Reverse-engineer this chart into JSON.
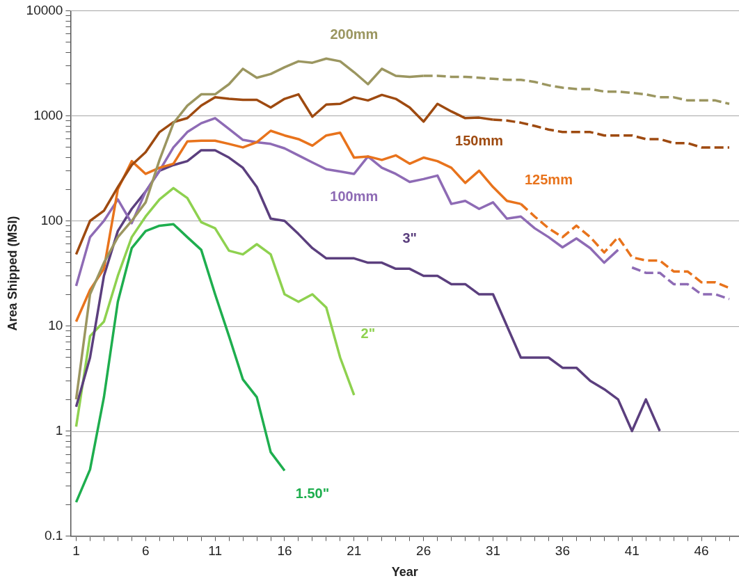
{
  "chart_data": {
    "type": "line",
    "xlabel": "Year",
    "ylabel": "Area Shipped (MSI)",
    "log": "y",
    "grid": "y",
    "legend": false,
    "marker": "none",
    "line_style": "solid",
    "xlim": [
      0.6,
      48.7
    ],
    "xticks": [
      1,
      {
        "value": 2,
        "label": null
      },
      {
        "value": 3,
        "label": null
      },
      {
        "value": 4,
        "label": null
      },
      {
        "value": 5,
        "label": null
      },
      6,
      {
        "value": 7,
        "label": null
      },
      {
        "value": 8,
        "label": null
      },
      {
        "value": 9,
        "label": null
      },
      {
        "value": 10,
        "label": null
      },
      11,
      {
        "value": 12,
        "label": null
      },
      {
        "value": 13,
        "label": null
      },
      {
        "value": 14,
        "label": null
      },
      {
        "value": 15,
        "label": null
      },
      16,
      {
        "value": 17,
        "label": null
      },
      {
        "value": 18,
        "label": null
      },
      {
        "value": 19,
        "label": null
      },
      {
        "value": 20,
        "label": null
      },
      21,
      {
        "value": 22,
        "label": null
      },
      {
        "value": 23,
        "label": null
      },
      {
        "value": 24,
        "label": null
      },
      {
        "value": 25,
        "label": null
      },
      26,
      {
        "value": 27,
        "label": null
      },
      {
        "value": 28,
        "label": null
      },
      {
        "value": 29,
        "label": null
      },
      {
        "value": 30,
        "label": null
      },
      31,
      {
        "value": 32,
        "label": null
      },
      {
        "value": 33,
        "label": null
      },
      {
        "value": 34,
        "label": null
      },
      {
        "value": 35,
        "label": null
      },
      36,
      {
        "value": 37,
        "label": null
      },
      {
        "value": 38,
        "label": null
      },
      {
        "value": 39,
        "label": null
      },
      {
        "value": 40,
        "label": null
      },
      41,
      {
        "value": 42,
        "label": null
      },
      {
        "value": 43,
        "label": null
      },
      {
        "value": 44,
        "label": null
      },
      {
        "value": 45,
        "label": null
      },
      46,
      {
        "value": 47,
        "label": null
      },
      {
        "value": 48,
        "label": null
      }
    ],
    "ylim": [
      0.1,
      10000
    ],
    "yticks": [
      0.1,
      {
        "value": 0.2,
        "label": null
      },
      {
        "value": 0.3,
        "label": null
      },
      {
        "value": 0.4,
        "label": null
      },
      {
        "value": 0.5,
        "label": null
      },
      {
        "value": 0.6,
        "label": null
      },
      {
        "value": 0.7,
        "label": null
      },
      {
        "value": 0.8,
        "label": null
      },
      {
        "value": 0.9,
        "label": null
      },
      1,
      {
        "value": 2,
        "label": null
      },
      {
        "value": 3,
        "label": null
      },
      {
        "value": 4,
        "label": null
      },
      {
        "value": 5,
        "label": null
      },
      {
        "value": 6,
        "label": null
      },
      {
        "value": 7,
        "label": null
      },
      {
        "value": 8,
        "label": null
      },
      {
        "value": 9,
        "label": null
      },
      10,
      {
        "value": 20,
        "label": null
      },
      {
        "value": 30,
        "label": null
      },
      {
        "value": 40,
        "label": null
      },
      {
        "value": 50,
        "label": null
      },
      {
        "value": 60,
        "label": null
      },
      {
        "value": 70,
        "label": null
      },
      {
        "value": 80,
        "label": null
      },
      {
        "value": 90,
        "label": null
      },
      100,
      {
        "value": 200,
        "label": null
      },
      {
        "value": 300,
        "label": null
      },
      {
        "value": 400,
        "label": null
      },
      {
        "value": 500,
        "label": null
      },
      {
        "value": 600,
        "label": null
      },
      {
        "value": 700,
        "label": null
      },
      {
        "value": 800,
        "label": null
      },
      {
        "value": 900,
        "label": null
      },
      1000,
      {
        "value": 2000,
        "label": null
      },
      {
        "value": 3000,
        "label": null
      },
      {
        "value": 4000,
        "label": null
      },
      {
        "value": 5000,
        "label": null
      },
      {
        "value": 6000,
        "label": null
      },
      {
        "value": 7000,
        "label": null
      },
      {
        "value": 8000,
        "label": null
      },
      {
        "value": 9000,
        "label": null
      },
      10000
    ],
    "series": [
      {
        "name": "200mm",
        "color": "#9b9660",
        "x": [
          1,
          2,
          3,
          4,
          5,
          6,
          7,
          8,
          9,
          10,
          11,
          12,
          13,
          14,
          15,
          16,
          17,
          18,
          19,
          20,
          21,
          22,
          23,
          24,
          25,
          26
        ],
        "values": [
          2,
          20,
          40,
          70,
          100,
          150,
          380,
          850,
          1250,
          1600,
          1600,
          2000,
          2800,
          2300,
          2500,
          2900,
          3300,
          3200,
          3500,
          3300,
          2600,
          2000,
          2800,
          2400,
          2350,
          2400
        ]
      },
      {
        "color": "#9b9660",
        "line_style": "dashed",
        "x": [
          26,
          27,
          28,
          29,
          30,
          31,
          32,
          33,
          34,
          35,
          36,
          37,
          38,
          39,
          40,
          41,
          42,
          43,
          44,
          45,
          46,
          47,
          48
        ],
        "values": [
          2400,
          2400,
          2350,
          2350,
          2300,
          2250,
          2200,
          2200,
          2100,
          1950,
          1850,
          1800,
          1800,
          1700,
          1700,
          1650,
          1600,
          1500,
          1500,
          1400,
          1400,
          1400,
          1300
        ]
      },
      {
        "name": "150mm",
        "color": "#9e4a10",
        "x": [
          1,
          2,
          3,
          4,
          5,
          6,
          7,
          8,
          9,
          10,
          11,
          12,
          13,
          14,
          15,
          16,
          17,
          18,
          19,
          20,
          21,
          22,
          23,
          24,
          25,
          26,
          27,
          28,
          29,
          30,
          31
        ],
        "values": [
          48,
          100,
          125,
          210,
          340,
          450,
          700,
          870,
          950,
          1250,
          1500,
          1450,
          1420,
          1420,
          1200,
          1450,
          1600,
          980,
          1280,
          1300,
          1500,
          1400,
          1580,
          1450,
          1200,
          880,
          1300,
          1100,
          950,
          960,
          920
        ]
      },
      {
        "color": "#9e4a10",
        "line_style": "dashed",
        "x": [
          31,
          32,
          33,
          34,
          35,
          36,
          37,
          38,
          39,
          40,
          41,
          42,
          43,
          44,
          45,
          46,
          47,
          48
        ],
        "values": [
          920,
          900,
          860,
          800,
          740,
          700,
          700,
          700,
          650,
          650,
          650,
          600,
          600,
          550,
          550,
          500,
          500,
          500
        ]
      },
      {
        "name": "125mm",
        "color": "#e8731c",
        "x": [
          1,
          2,
          3,
          4,
          5,
          6,
          7,
          8,
          9,
          10,
          11,
          12,
          13,
          14,
          15,
          16,
          17,
          18,
          19,
          20,
          21,
          22,
          23,
          24,
          25,
          26,
          27,
          28,
          29,
          30,
          31,
          32,
          33
        ],
        "values": [
          11,
          22,
          35,
          200,
          370,
          280,
          320,
          350,
          570,
          580,
          580,
          540,
          500,
          560,
          720,
          650,
          600,
          520,
          650,
          690,
          400,
          410,
          380,
          420,
          350,
          400,
          370,
          320,
          230,
          300,
          210,
          155,
          145
        ]
      },
      {
        "color": "#e8731c",
        "line_style": "dashed",
        "x": [
          33,
          34,
          35,
          36,
          37,
          38,
          39,
          40,
          41,
          42,
          43,
          44,
          45,
          46,
          47,
          48
        ],
        "values": [
          145,
          110,
          85,
          70,
          90,
          70,
          50,
          70,
          45,
          42,
          42,
          33,
          33,
          26,
          26,
          23
        ]
      },
      {
        "name": "100mm",
        "color": "#8e6bb5",
        "x": [
          1,
          2,
          3,
          4,
          5,
          6,
          7,
          8,
          9,
          10,
          11,
          12,
          13,
          14,
          15,
          16,
          17,
          18,
          19,
          20,
          21,
          22,
          23,
          24,
          25,
          26,
          27,
          28,
          29,
          30,
          31,
          32,
          33,
          34,
          35,
          36,
          37,
          38,
          39,
          40
        ],
        "values": [
          24,
          70,
          100,
          160,
          95,
          190,
          300,
          500,
          700,
          850,
          950,
          750,
          590,
          560,
          540,
          490,
          420,
          360,
          310,
          295,
          280,
          410,
          320,
          280,
          235,
          250,
          270,
          145,
          155,
          130,
          150,
          105,
          110,
          85,
          70,
          56,
          68,
          55,
          40,
          53
        ]
      },
      {
        "color": "#8e6bb5",
        "line_style": "dashed",
        "x": [
          41,
          42,
          43,
          44,
          45,
          46,
          47,
          48
        ],
        "values": [
          36,
          32,
          32,
          25,
          25,
          20,
          20,
          18
        ]
      },
      {
        "name": "3\"",
        "color": "#5b3f7e",
        "x": [
          1,
          2,
          3,
          4,
          5,
          6,
          7,
          8,
          9,
          10,
          11,
          12,
          13,
          14,
          15,
          16,
          17,
          18,
          19,
          20,
          21,
          22,
          23,
          24,
          25,
          26,
          27,
          28,
          29,
          30,
          31,
          32,
          33,
          34,
          35,
          36,
          37,
          38,
          39,
          40,
          41,
          42,
          43
        ],
        "values": [
          1.7,
          5,
          30,
          80,
          130,
          190,
          300,
          340,
          370,
          470,
          470,
          400,
          320,
          210,
          105,
          100,
          75,
          55,
          44,
          44,
          44,
          40,
          40,
          35,
          35,
          30,
          30,
          25,
          25,
          20,
          20,
          10,
          5,
          5,
          5,
          4,
          4,
          3,
          2.5,
          2,
          1,
          2,
          1
        ]
      },
      {
        "name": "2\"",
        "color": "#8ed14f",
        "x": [
          1,
          2,
          3,
          4,
          5,
          6,
          7,
          8,
          9,
          10,
          11,
          12,
          13,
          14,
          15,
          16,
          17,
          18,
          19,
          20,
          21
        ],
        "values": [
          1.1,
          8,
          11,
          30,
          70,
          110,
          160,
          205,
          165,
          97,
          85,
          52,
          48,
          60,
          48,
          20,
          17,
          20,
          15,
          5,
          2.2
        ]
      },
      {
        "name": "1.50\"",
        "color": "#1eae4e",
        "x": [
          1,
          2,
          3,
          4,
          5,
          6,
          7,
          8,
          9,
          10,
          11,
          12,
          13,
          14,
          15,
          16
        ],
        "values": [
          0.21,
          0.43,
          2.1,
          17,
          55,
          80,
          90,
          93,
          70,
          53,
          20,
          8,
          3.1,
          2.1,
          0.63,
          0.42
        ]
      }
    ]
  }
}
